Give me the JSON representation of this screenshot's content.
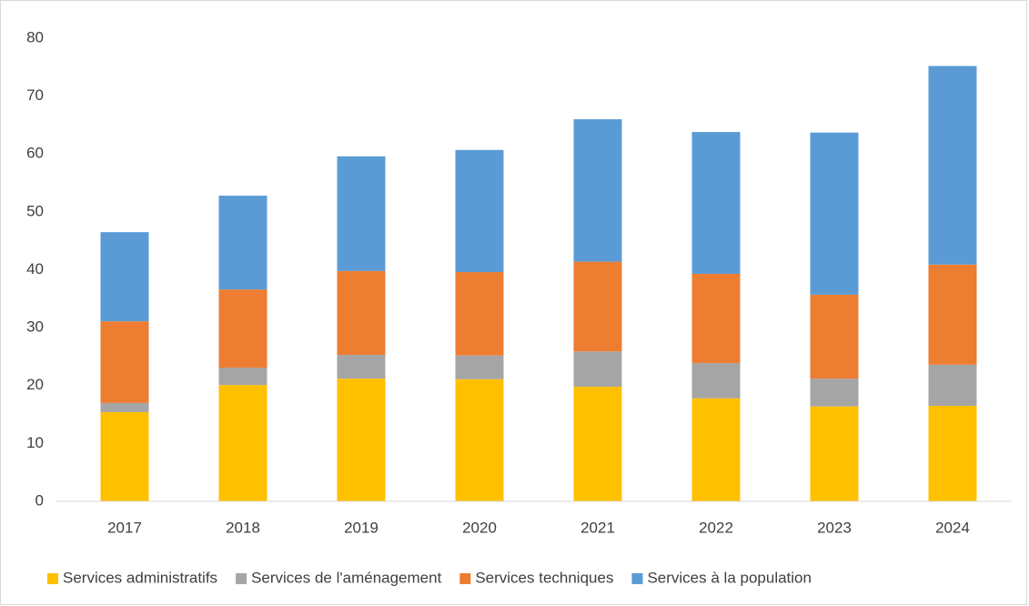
{
  "chart_data": {
    "type": "bar",
    "stacked": true,
    "categories": [
      "2017",
      "2018",
      "2019",
      "2020",
      "2021",
      "2022",
      "2023",
      "2024"
    ],
    "series": [
      {
        "name": "Services administratifs",
        "color": "#ffc000",
        "values": [
          15.4,
          20.1,
          21.2,
          21.1,
          19.8,
          17.8,
          16.4,
          16.5
        ]
      },
      {
        "name": "Services de l'aménagement",
        "color": "#a5a5a5",
        "values": [
          1.6,
          3.0,
          4.1,
          4.1,
          6.1,
          6.1,
          4.8,
          7.1
        ]
      },
      {
        "name": "Services techniques",
        "color": "#ed7d31",
        "values": [
          14.1,
          13.5,
          14.5,
          14.4,
          15.5,
          15.4,
          14.5,
          17.3
        ]
      },
      {
        "name": "Services à la population",
        "color": "#5b9bd5",
        "values": [
          15.4,
          16.2,
          19.8,
          21.1,
          24.6,
          24.5,
          28.0,
          34.3
        ]
      }
    ],
    "ylim": [
      0,
      80
    ],
    "yticks": [
      0,
      10,
      20,
      30,
      40,
      50,
      60,
      70,
      80
    ],
    "grid": false,
    "legend": "bottom"
  }
}
